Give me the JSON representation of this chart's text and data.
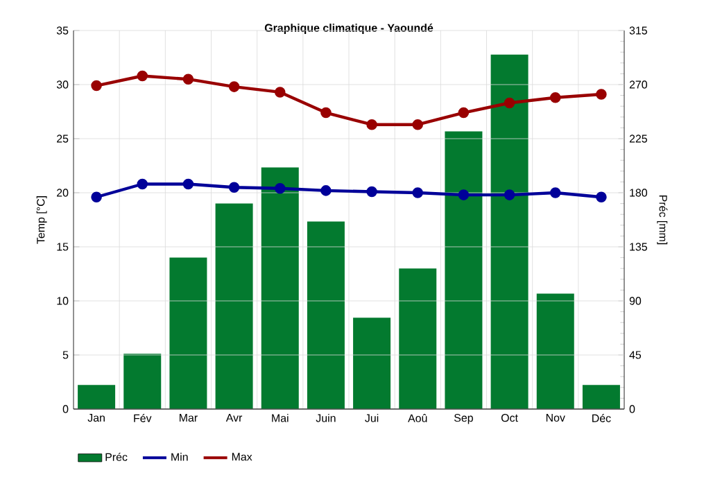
{
  "chart_data": {
    "type": "bar",
    "title": "Graphique climatique - Yaoundé",
    "ylabel": "Temp [°C]",
    "y2label": "Préc [mm]",
    "categories": [
      "Jan",
      "Fév",
      "Mar",
      "Avr",
      "Mai",
      "Juin",
      "Jui",
      "Aoû",
      "Sep",
      "Oct",
      "Nov",
      "Déc"
    ],
    "series": [
      {
        "name": "Préc",
        "axis": "y2",
        "color": "#037a2f",
        "values": [
          20,
          46,
          126,
          171,
          201,
          156,
          76,
          117,
          231,
          295,
          96,
          20
        ]
      },
      {
        "name": "Min",
        "type": "line",
        "color": "#000099",
        "values": [
          19.6,
          20.8,
          20.8,
          20.5,
          20.4,
          20.2,
          20.1,
          20.0,
          19.8,
          19.8,
          20.0,
          19.6
        ]
      },
      {
        "name": "Max",
        "type": "line",
        "color": "#990000",
        "values": [
          29.9,
          30.8,
          30.5,
          29.8,
          29.3,
          27.4,
          26.3,
          26.3,
          27.4,
          28.3,
          28.8,
          29.1
        ]
      }
    ],
    "ylim": [
      0,
      35
    ],
    "yticks": [
      0,
      5,
      10,
      15,
      20,
      25,
      30,
      35
    ],
    "y2lim": [
      0,
      315
    ],
    "y2ticks": [
      0,
      45,
      90,
      135,
      180,
      225,
      270,
      315
    ],
    "grid": true,
    "legend": "bottom",
    "marker": "circle",
    "line_style": "solid"
  }
}
